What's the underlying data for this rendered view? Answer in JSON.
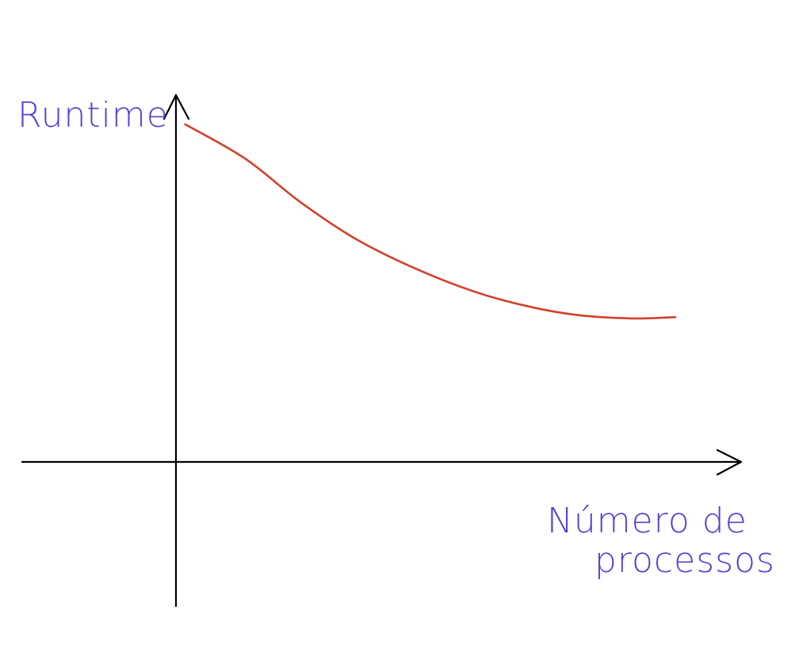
{
  "chart_data": {
    "type": "line",
    "title": "",
    "xlabel": [
      "Número de",
      "processos"
    ],
    "ylabel": "Runtime",
    "grid": false,
    "legend": "none",
    "series": [
      {
        "x": [
          0.3,
          1.4,
          2.4,
          3.4,
          4.5,
          5.6,
          6.6,
          7.5,
          8.5,
          9.3
        ],
        "values": [
          7.2,
          6.4,
          5.4,
          4.55,
          3.85,
          3.3,
          2.95,
          2.75,
          2.67,
          2.7
        ]
      }
    ],
    "xlim": [
      -3.1,
      11.5
    ],
    "ylim": [
      -5.3,
      10.1
    ],
    "colors": {
      "axis": "#000000",
      "curve": "#d2412a",
      "labels": "#5b3fd6"
    }
  }
}
